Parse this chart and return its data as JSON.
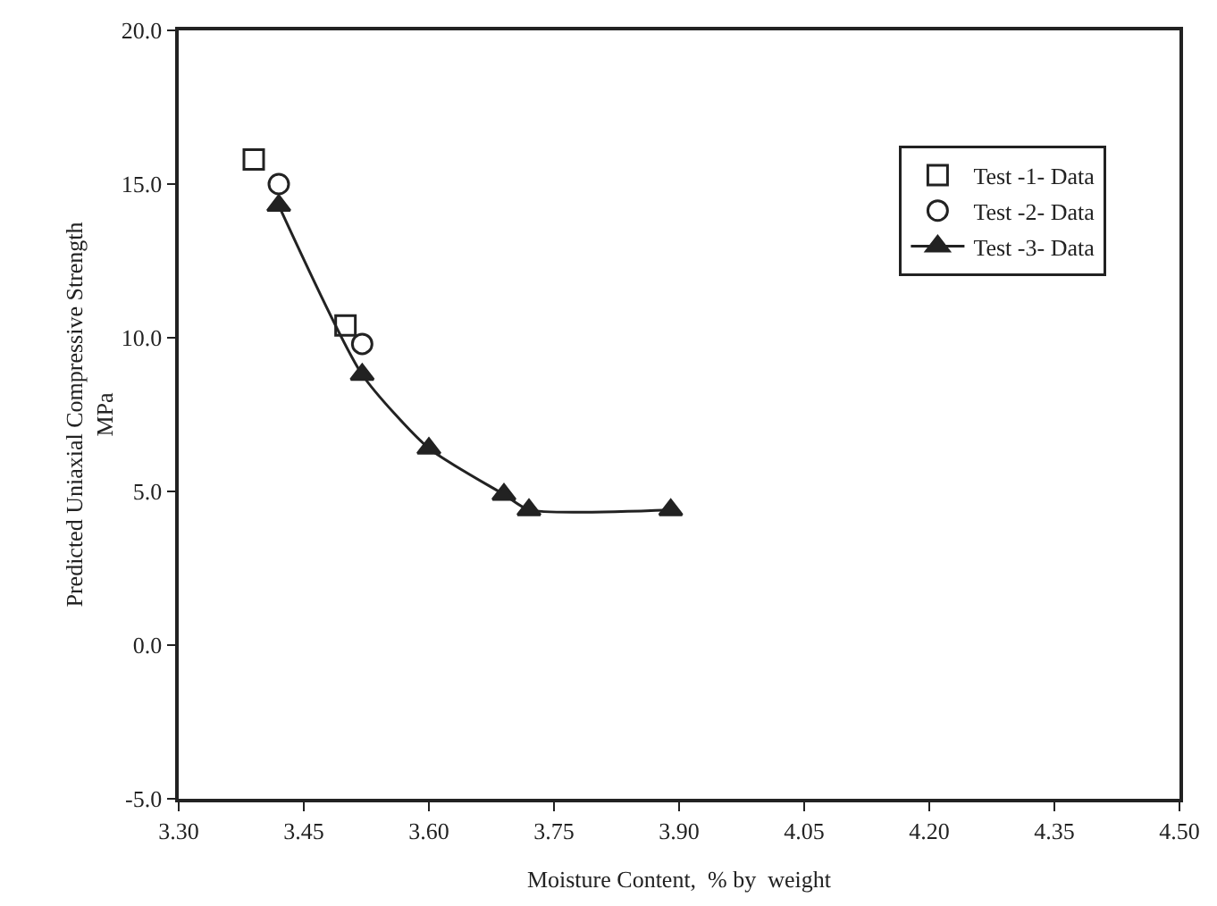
{
  "chart_data": {
    "type": "scatter",
    "xlabel": "Moisture Content,  % by  weight",
    "ylabel": "Predicted Uniaxial Compressive Strength\nMPa",
    "xlim": [
      3.3,
      4.5
    ],
    "ylim": [
      -5,
      20
    ],
    "xticks": [
      {
        "value": 3.3,
        "label": "3.30"
      },
      {
        "value": 3.45,
        "label": "3.45"
      },
      {
        "value": 3.6,
        "label": "3.60"
      },
      {
        "value": 3.75,
        "label": "3.75"
      },
      {
        "value": 3.9,
        "label": "3.90"
      },
      {
        "value": 4.05,
        "label": "4.05"
      },
      {
        "value": 4.2,
        "label": "4.20"
      },
      {
        "value": 4.35,
        "label": "4.35"
      },
      {
        "value": 4.5,
        "label": "4.50"
      }
    ],
    "yticks": [
      {
        "value": -5,
        "label": "-5.0"
      },
      {
        "value": 0,
        "label": "0.0"
      },
      {
        "value": 5,
        "label": "5.0"
      },
      {
        "value": 10,
        "label": "10.0"
      },
      {
        "value": 15,
        "label": "15.0"
      },
      {
        "value": 20,
        "label": "20.0"
      }
    ],
    "grid": false,
    "legend": "top right",
    "series": [
      {
        "name": "Test -1- Data",
        "color": "#222222",
        "marker": "square",
        "x": [
          3.39,
          3.5
        ],
        "values": [
          15.8,
          10.4
        ]
      },
      {
        "name": "Test -2- Data",
        "color": "#222222",
        "marker": "circle",
        "x": [
          3.42,
          3.52
        ],
        "values": [
          15.0,
          9.8
        ]
      },
      {
        "name": "Test -3- Data",
        "type": "line",
        "color": "#222222",
        "marker": "triangle",
        "x": [
          3.42,
          3.52,
          3.6,
          3.69,
          3.72,
          3.89
        ],
        "values": [
          14.3,
          8.8,
          6.4,
          4.9,
          4.4,
          4.4
        ]
      }
    ]
  }
}
